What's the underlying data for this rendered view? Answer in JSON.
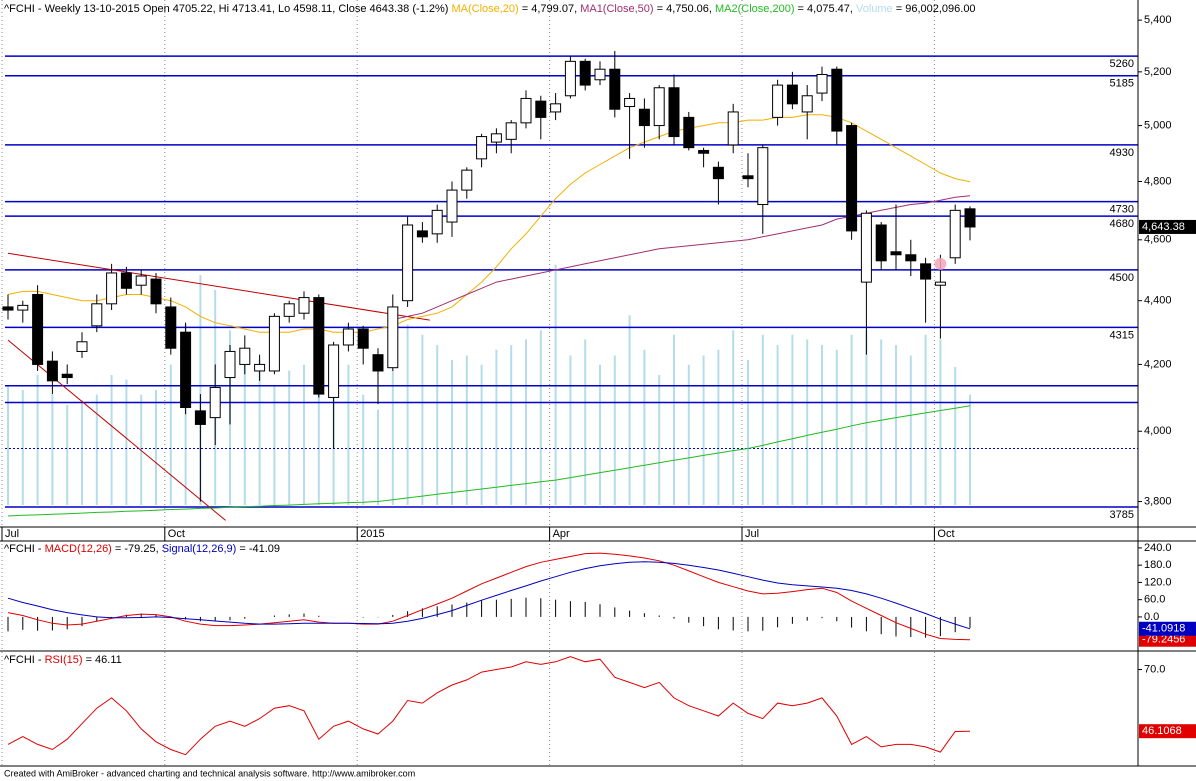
{
  "chart_data": [
    {
      "type": "candlestick",
      "title": "^FCHI - Weekly 13-10-2015 Open 4705.22, Hi 4713.41, Lo 4598.11, Close 4643.38 (-1.2%) ",
      "log": true,
      "grid": "x",
      "ylim": [
        3730,
        5480
      ],
      "yticks": [
        {
          "value": 5400,
          "label": "5,400"
        },
        {
          "value": 5200,
          "label": "5,200"
        },
        {
          "value": 5000,
          "label": "5,000"
        },
        {
          "value": 4800,
          "label": "4,800"
        },
        {
          "value": 4600,
          "label": "4,600"
        },
        {
          "value": 4400,
          "label": "4,400"
        },
        {
          "value": 4200,
          "label": "4,200"
        },
        {
          "value": 4000,
          "label": "4,000"
        },
        {
          "value": 3800,
          "label": "3,800"
        }
      ],
      "categories": [
        "Jul",
        null,
        null,
        null,
        null,
        null,
        null,
        null,
        null,
        null,
        null,
        "Oct",
        null,
        null,
        null,
        null,
        null,
        null,
        null,
        null,
        null,
        null,
        null,
        null,
        "2015",
        null,
        null,
        null,
        null,
        null,
        null,
        null,
        null,
        null,
        null,
        null,
        null,
        "Apr",
        null,
        null,
        null,
        null,
        null,
        null,
        null,
        null,
        null,
        null,
        null,
        null,
        "Jul",
        null,
        null,
        null,
        null,
        null,
        null,
        null,
        null,
        null,
        null,
        null,
        null,
        "Oct",
        null,
        null
      ],
      "open": [
        4380,
        4370,
        4420,
        4210,
        4170,
        4240,
        4320,
        4390,
        4490,
        4450,
        4470,
        4380,
        4300,
        4060,
        4040,
        4160,
        4200,
        4180,
        4180,
        4350,
        4360,
        4410,
        4100,
        4260,
        4310,
        4230,
        4190,
        4400,
        4630,
        4620,
        4660,
        4770,
        4880,
        4940,
        4950,
        5010,
        5090,
        5050,
        5110,
        5240,
        5170,
        5210,
        5070,
        5060,
        5000,
        5140,
        5030,
        4910,
        4850,
        4930,
        4820,
        4720,
        5030,
        5150,
        5050,
        5120,
        5210,
        5000,
        4460,
        4650,
        4560,
        4550,
        4520,
        4450,
        4540,
        4705.22
      ],
      "high": [
        4420,
        4400,
        4450,
        4240,
        4200,
        4300,
        4420,
        4520,
        4510,
        4500,
        4490,
        4410,
        4330,
        4110,
        4200,
        4260,
        4290,
        4230,
        4360,
        4400,
        4430,
        4420,
        4270,
        4330,
        4320,
        4250,
        4420,
        4680,
        4660,
        4720,
        4800,
        4850,
        4970,
        4990,
        5020,
        5130,
        5110,
        5120,
        5260,
        5250,
        5240,
        5280,
        5120,
        5100,
        5150,
        5190,
        5050,
        4920,
        4870,
        5080,
        4900,
        4930,
        5170,
        5200,
        5150,
        5220,
        5220,
        5010,
        4700,
        4660,
        4720,
        4600,
        4540,
        4550,
        4720,
        4713.41
      ],
      "low": [
        4340,
        4330,
        4180,
        4110,
        4140,
        4220,
        4300,
        4370,
        4420,
        4420,
        4360,
        4230,
        4050,
        3800,
        3960,
        4020,
        4170,
        4150,
        4170,
        4330,
        4340,
        4100,
        3950,
        4240,
        4200,
        4080,
        4180,
        4380,
        4590,
        4590,
        4610,
        4740,
        4850,
        4900,
        4900,
        4990,
        4950,
        5020,
        5100,
        5130,
        5150,
        5030,
        4880,
        4920,
        4950,
        4930,
        4910,
        4850,
        4720,
        4900,
        4780,
        4620,
        5000,
        5060,
        4950,
        5090,
        4930,
        4600,
        4230,
        4500,
        4500,
        4480,
        4330,
        4280,
        4520,
        4598.11
      ],
      "close": [
        4370,
        4385,
        4200,
        4150,
        4160,
        4270,
        4390,
        4490,
        4440,
        4480,
        4390,
        4250,
        4070,
        4020,
        4130,
        4240,
        4250,
        4200,
        4350,
        4390,
        4410,
        4110,
        4260,
        4310,
        4250,
        4180,
        4380,
        4650,
        4610,
        4700,
        4770,
        4840,
        4960,
        4970,
        5010,
        5100,
        5030,
        5080,
        5240,
        5150,
        5210,
        5060,
        5100,
        5000,
        5140,
        4960,
        4920,
        4900,
        4810,
        5050,
        4810,
        4920,
        5150,
        5080,
        5110,
        5190,
        4980,
        4630,
        4690,
        4530,
        4550,
        4530,
        4470,
        4460,
        4700,
        4643.38
      ],
      "close_label": "4,643.38",
      "up_color": "#ffffff",
      "down_color": "#000000",
      "series": [
        {
          "name": "MA(Close,20)",
          "legend_text": " = 4,799.07, ",
          "color": "#f0b000",
          "values": [
            4420,
            4430,
            4430,
            4420,
            4410,
            4400,
            4400,
            4410,
            4420,
            4420,
            4410,
            4400,
            4380,
            4350,
            4330,
            4320,
            4310,
            4300,
            4300,
            4300,
            4310,
            4310,
            4300,
            4300,
            4300,
            4310,
            4320,
            4340,
            4350,
            4360,
            4380,
            4420,
            4460,
            4510,
            4570,
            4620,
            4680,
            4740,
            4790,
            4830,
            4860,
            4890,
            4920,
            4940,
            4960,
            4980,
            4990,
            5000,
            5010,
            5010,
            5020,
            5020,
            5030,
            5030,
            5040,
            5040,
            5030,
            5010,
            4980,
            4950,
            4920,
            4890,
            4860,
            4830,
            4810,
            4799.07
          ]
        },
        {
          "name": "MA1(Close,50)",
          "legend_text": " = 4,750.06, ",
          "color": "#a0306e",
          "values": [
            null,
            null,
            null,
            null,
            null,
            null,
            null,
            null,
            null,
            null,
            null,
            null,
            null,
            null,
            null,
            null,
            null,
            null,
            null,
            null,
            null,
            null,
            null,
            null,
            null,
            null,
            4340,
            4350,
            4360,
            4380,
            4400,
            4420,
            4440,
            4460,
            4470,
            4480,
            4490,
            4500,
            4510,
            4520,
            4530,
            4540,
            4550,
            4560,
            4570,
            4575,
            4580,
            4585,
            4590,
            4595,
            4600,
            4610,
            4620,
            4630,
            4640,
            4650,
            4670,
            4680,
            4690,
            4700,
            4710,
            4720,
            4725,
            4735,
            4745,
            4750.06
          ]
        },
        {
          "name": "MA2(Close,200)",
          "legend_text": " = 4,075.47, ",
          "color": "#22bb22",
          "values": [
            3760,
            3762,
            3763,
            3765,
            3766,
            3768,
            3770,
            3771,
            3773,
            3774,
            3776,
            3778,
            3779,
            3781,
            3782,
            3784,
            3786,
            3787,
            3789,
            3790,
            3792,
            3794,
            3795,
            3797,
            3798,
            3800,
            3805,
            3810,
            3815,
            3820,
            3825,
            3830,
            3835,
            3840,
            3845,
            3850,
            3855,
            3860,
            3867,
            3874,
            3881,
            3888,
            3895,
            3902,
            3909,
            3916,
            3923,
            3930,
            3937,
            3944,
            3950,
            3959,
            3969,
            3978,
            3988,
            3997,
            4006,
            4016,
            4025,
            4032,
            4040,
            4047,
            4054,
            4061,
            4068,
            4075.47
          ]
        }
      ],
      "volume": {
        "name": "Volume",
        "legend_text": " = 96,002,096.00",
        "color": "#b4dcea",
        "values": [
          104000000,
          100000000,
          113000000,
          96000000,
          87000000,
          91000000,
          96000000,
          113000000,
          109000000,
          96000000,
          100000000,
          122000000,
          157000000,
          200000000,
          187000000,
          152000000,
          130000000,
          126000000,
          104000000,
          117000000,
          122000000,
          130000000,
          113000000,
          122000000,
          96000000,
          83000000,
          117000000,
          157000000,
          148000000,
          139000000,
          126000000,
          130000000,
          122000000,
          135000000,
          139000000,
          144000000,
          152000000,
          209000000,
          130000000,
          144000000,
          122000000,
          130000000,
          165000000,
          135000000,
          113000000,
          148000000,
          122000000,
          130000000,
          135000000,
          152000000,
          126000000,
          148000000,
          139000000,
          148000000,
          144000000,
          139000000,
          135000000,
          148000000,
          152000000,
          144000000,
          139000000,
          130000000,
          148000000,
          144000000,
          120000000,
          96002096
        ]
      },
      "levels": [
        5260,
        5185,
        4930,
        4730,
        4680,
        4500,
        4315,
        3785
      ],
      "extra_levels": [
        4135,
        4085
      ],
      "dotted_level": 3950,
      "level_color": "#0000c8",
      "trendlines": [
        {
          "x": [
            0,
            28.5
          ],
          "y": [
            4555,
            4338
          ]
        },
        {
          "x": [
            0,
            14.7
          ],
          "y": [
            4275,
            3748
          ]
        }
      ],
      "trendline_color": "#c00000",
      "marker": {
        "x": 63,
        "y": 4520,
        "color": "#f4a6b8"
      }
    },
    {
      "type": "macd",
      "title": "^FCHI - ",
      "ylim": [
        -108,
        257
      ],
      "yticks": [
        {
          "value": 240,
          "label": "240.0"
        },
        {
          "value": 180,
          "label": "180.0"
        },
        {
          "value": 120,
          "label": "120.0"
        },
        {
          "value": 60,
          "label": "60.0"
        },
        {
          "value": 0,
          "label": "0.0"
        }
      ],
      "series": [
        {
          "name": "MACD(12,26)",
          "legend_text": " = -79.25, ",
          "color": "#e00000",
          "last_label": "-79.2456",
          "values": [
            15,
            5,
            -10,
            -22,
            -28,
            -25,
            -15,
            -5,
            5,
            10,
            8,
            0,
            -15,
            -25,
            -30,
            -30,
            -28,
            -25,
            -20,
            -15,
            -10,
            -18,
            -22,
            -22,
            -25,
            -25,
            -15,
            5,
            25,
            45,
            65,
            90,
            115,
            135,
            155,
            175,
            190,
            200,
            210,
            220,
            222,
            218,
            212,
            205,
            195,
            180,
            160,
            140,
            120,
            105,
            90,
            80,
            82,
            88,
            95,
            100,
            85,
            55,
            30,
            5,
            -20,
            -40,
            -60,
            -75,
            -78,
            -79.2456
          ]
        },
        {
          "name": "Signal(12,26,9)",
          "legend_text": " = -41.09",
          "color": "#0000c0",
          "last_label": "-41.0918",
          "values": [
            65,
            50,
            38,
            25,
            15,
            7,
            0,
            -3,
            -3,
            -2,
            0,
            -2,
            -6,
            -10,
            -14,
            -18,
            -22,
            -25,
            -25,
            -24,
            -22,
            -22,
            -22,
            -22,
            -23,
            -24,
            -22,
            -15,
            -5,
            8,
            22,
            40,
            58,
            75,
            92,
            108,
            125,
            140,
            155,
            168,
            178,
            185,
            190,
            192,
            190,
            186,
            180,
            172,
            163,
            152,
            140,
            128,
            118,
            112,
            108,
            104,
            100,
            92,
            80,
            65,
            48,
            30,
            12,
            -8,
            -25,
            -41.0918
          ]
        }
      ],
      "histogram": {
        "color": "#000000",
        "values": [
          -50,
          -45,
          -48,
          -47,
          -43,
          -32,
          -15,
          -2,
          8,
          12,
          8,
          2,
          -9,
          -15,
          -16,
          -12,
          -6,
          0,
          5,
          9,
          12,
          4,
          0,
          0,
          -2,
          -1,
          7,
          20,
          30,
          37,
          43,
          50,
          57,
          60,
          63,
          67,
          65,
          60,
          55,
          52,
          44,
          33,
          22,
          13,
          5,
          -6,
          -20,
          -32,
          -43,
          -47,
          -50,
          -48,
          -36,
          -24,
          -13,
          -4,
          -15,
          -37,
          -50,
          -60,
          -68,
          -70,
          -72,
          -67,
          -53,
          -38.1538
        ]
      }
    },
    {
      "type": "rsi",
      "title": "^FCHI - ",
      "ylim": [
        33,
        76.8
      ],
      "yticks": [
        {
          "value": 70,
          "label": "70.0"
        }
      ],
      "series": [
        {
          "name": "RSI(15)",
          "legend_text": " = 46.11",
          "color": "#e00000",
          "last_label": "46.1068",
          "values": [
            41,
            44,
            41,
            39,
            43,
            49,
            55,
            59,
            54,
            47,
            42,
            39,
            37,
            43,
            48,
            50,
            48,
            51,
            55,
            56,
            54,
            43,
            48,
            50,
            47,
            45,
            50,
            58,
            57,
            61,
            64,
            66,
            69,
            70,
            71,
            73,
            72,
            73,
            75,
            73,
            74,
            67,
            65,
            63,
            65,
            59,
            56,
            54,
            52,
            57,
            53,
            51,
            57,
            56,
            57,
            59,
            52,
            41,
            44,
            40,
            41,
            41,
            40,
            38,
            46,
            46.1068
          ]
        }
      ]
    }
  ],
  "footer": "Created with AmiBroker - advanced charting and technical analysis software. http://www.amibroker.com"
}
